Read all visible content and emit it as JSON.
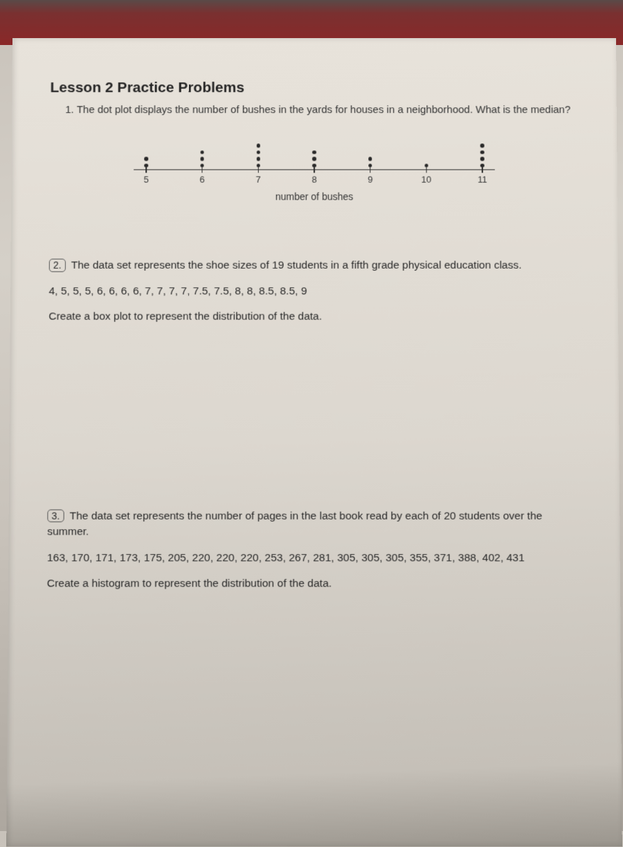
{
  "title": "Lesson 2 Practice Problems",
  "q1": {
    "number": "1.",
    "text": "The dot plot displays the number of bushes in the yards for houses in a neighborhood. What is the median?",
    "dotplot": {
      "axis_title": "number of bushes",
      "axis_color": "#2a2a2a",
      "dot_color": "#2a2a2a",
      "ticks": [
        5,
        6,
        7,
        8,
        9,
        10,
        11
      ],
      "counts": {
        "5": 2,
        "6": 3,
        "7": 4,
        "8": 3,
        "9": 2,
        "10": 1,
        "11": 4
      },
      "label_fontsize": 13,
      "title_fontsize": 14
    }
  },
  "q2": {
    "number": "2.",
    "intro": "The data set represents the shoe sizes of 19 students in a fifth grade physical education class.",
    "data_text": "4, 5, 5, 5, 6, 6, 6, 6, 7, 7, 7, 7, 7.5, 7.5, 8, 8, 8.5, 8.5, 9",
    "task": "Create a box plot to represent the distribution of the data."
  },
  "q3": {
    "number": "3.",
    "intro": "The data set represents the number of pages in the last book read by each of 20 students over the summer.",
    "data_text": "163, 170, 171, 173, 175, 205, 220, 220, 220, 253, 267, 281, 305, 305, 305, 355, 371, 388, 402, 431",
    "task": "Create a histogram to represent the distribution of the data."
  }
}
